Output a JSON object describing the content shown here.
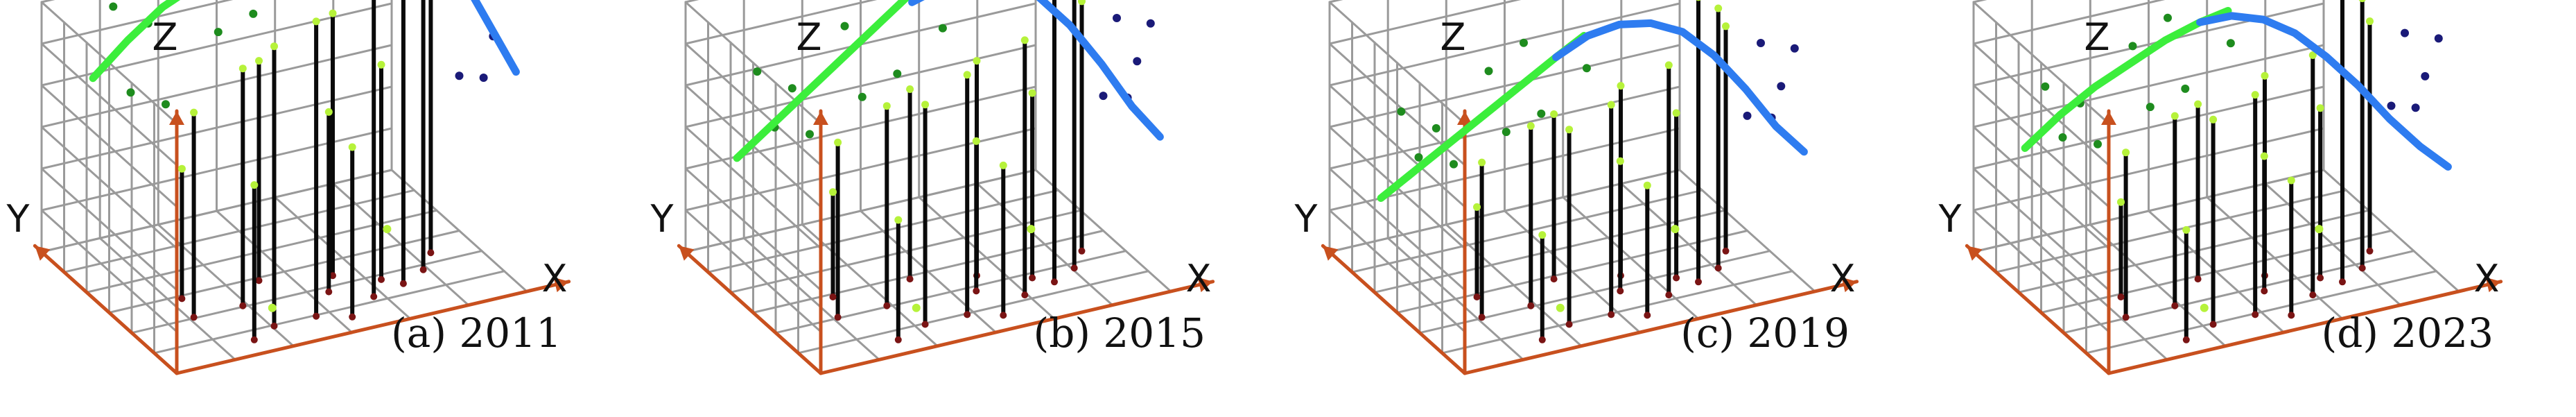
{
  "axes": {
    "x": "X",
    "y": "Y",
    "z": "Z"
  },
  "colors": {
    "grid": "#9a9a9a",
    "axis": "#c8501e",
    "green_curve": "#3cee3c",
    "blue_curve": "#2e7cf0",
    "stem": "#0a0a0a",
    "stem_base": "#7a1414",
    "lime_point": "#b6f23a",
    "green_point": "#1e8c1e",
    "navy_point": "#1a1a78"
  },
  "panels": [
    {
      "caption": "(a) 2011",
      "green_curve": [
        [
          0.0,
          0.62,
          0.88
        ],
        [
          0.1,
          0.62,
          1.0
        ],
        [
          0.2,
          0.62,
          1.1
        ],
        [
          0.3,
          0.62,
          1.16
        ],
        [
          0.4,
          0.62,
          1.2
        ],
        [
          0.5,
          0.62,
          1.22
        ],
        [
          0.58,
          0.62,
          1.22
        ]
      ],
      "blue_curve": [
        [
          0.5,
          0.0,
          1.26
        ],
        [
          0.5,
          0.08,
          1.48
        ],
        [
          0.5,
          0.16,
          1.54
        ],
        [
          0.5,
          0.24,
          1.56
        ],
        [
          0.5,
          0.32,
          1.52
        ],
        [
          0.5,
          0.4,
          1.42
        ],
        [
          0.5,
          0.48,
          1.24
        ],
        [
          0.5,
          0.54,
          1.04
        ],
        [
          0.5,
          0.6,
          0.84
        ]
      ],
      "stems": [
        [
          0.18,
          0.34,
          0.82
        ],
        [
          0.32,
          0.34,
          0.95
        ],
        [
          0.42,
          0.48,
          0.88
        ],
        [
          0.6,
          0.4,
          1.05
        ],
        [
          0.26,
          0.1,
          0.62
        ],
        [
          0.34,
          0.16,
          1.12
        ],
        [
          0.46,
          0.16,
          1.18
        ],
        [
          0.54,
          0.1,
          0.68
        ],
        [
          0.64,
          0.2,
          1.28
        ],
        [
          0.74,
          0.24,
          1.42
        ],
        [
          0.82,
          0.3,
          1.36
        ],
        [
          0.88,
          0.4,
          1.18
        ],
        [
          0.7,
          0.3,
          0.86
        ],
        [
          0.2,
          0.48,
          0.52
        ],
        [
          0.55,
          0.3,
          0.72
        ]
      ],
      "green_points": [
        [
          0.05,
          0.6,
          1.16
        ],
        [
          0.15,
          0.6,
          1.06
        ],
        [
          0.35,
          0.6,
          0.96
        ],
        [
          0.45,
          0.6,
          1.0
        ],
        [
          0.2,
          0.6,
          0.72
        ],
        [
          0.3,
          0.6,
          1.26
        ],
        [
          0.58,
          0.6,
          1.1
        ],
        [
          0.4,
          0.6,
          1.32
        ],
        [
          0.1,
          0.6,
          0.8
        ]
      ],
      "navy_points": [
        [
          0.5,
          0.05,
          1.4
        ],
        [
          0.5,
          0.4,
          1.06
        ],
        [
          0.5,
          0.25,
          0.9
        ],
        [
          0.5,
          0.15,
          1.2
        ],
        [
          0.5,
          0.32,
          0.7
        ],
        [
          0.5,
          0.5,
          0.62
        ]
      ],
      "lime_points": [
        [
          0.35,
          0.2,
          0.05
        ],
        [
          0.62,
          0.05,
          0.35
        ]
      ]
    },
    {
      "caption": "(b) 2015",
      "green_curve": [
        [
          0.0,
          0.62,
          0.56
        ],
        [
          0.1,
          0.62,
          0.66
        ],
        [
          0.2,
          0.62,
          0.76
        ],
        [
          0.3,
          0.62,
          0.86
        ],
        [
          0.4,
          0.62,
          0.96
        ],
        [
          0.5,
          0.62,
          1.06
        ],
        [
          0.58,
          0.62,
          1.14
        ]
      ],
      "blue_curve": [
        [
          0.5,
          0.0,
          1.02
        ],
        [
          0.5,
          0.08,
          1.1
        ],
        [
          0.5,
          0.16,
          1.14
        ],
        [
          0.5,
          0.24,
          1.14
        ],
        [
          0.5,
          0.32,
          1.1
        ],
        [
          0.5,
          0.4,
          1.0
        ],
        [
          0.5,
          0.48,
          0.86
        ],
        [
          0.5,
          0.55,
          0.7
        ],
        [
          0.5,
          0.6,
          0.58
        ]
      ],
      "stems": [
        [
          0.18,
          0.34,
          0.7
        ],
        [
          0.32,
          0.34,
          0.8
        ],
        [
          0.44,
          0.48,
          0.76
        ],
        [
          0.6,
          0.4,
          0.86
        ],
        [
          0.26,
          0.1,
          0.48
        ],
        [
          0.36,
          0.16,
          0.88
        ],
        [
          0.48,
          0.16,
          0.96
        ],
        [
          0.56,
          0.1,
          0.6
        ],
        [
          0.66,
          0.2,
          1.02
        ],
        [
          0.76,
          0.24,
          1.24
        ],
        [
          0.84,
          0.3,
          1.16
        ],
        [
          0.9,
          0.4,
          1.0
        ],
        [
          0.72,
          0.3,
          0.74
        ],
        [
          0.22,
          0.48,
          0.42
        ],
        [
          0.56,
          0.3,
          0.6
        ]
      ],
      "green_points": [
        [
          0.05,
          0.6,
          0.9
        ],
        [
          0.15,
          0.6,
          0.8
        ],
        [
          0.35,
          0.6,
          0.7
        ],
        [
          0.45,
          0.6,
          0.76
        ],
        [
          0.2,
          0.6,
          0.6
        ],
        [
          0.3,
          0.6,
          1.0
        ],
        [
          0.58,
          0.6,
          0.9
        ],
        [
          0.4,
          0.6,
          1.1
        ],
        [
          0.1,
          0.6,
          0.66
        ]
      ],
      "navy_points": [
        [
          0.5,
          0.05,
          1.3
        ],
        [
          0.5,
          0.4,
          0.9
        ],
        [
          0.5,
          0.25,
          0.8
        ],
        [
          0.5,
          0.15,
          1.0
        ],
        [
          0.5,
          0.32,
          0.62
        ],
        [
          0.5,
          0.5,
          0.54
        ]
      ],
      "lime_points": [
        [
          0.35,
          0.2,
          0.05
        ],
        [
          0.62,
          0.05,
          0.35
        ]
      ]
    },
    {
      "caption": "(c) 2019",
      "green_curve": [
        [
          0.0,
          0.62,
          0.4
        ],
        [
          0.1,
          0.62,
          0.48
        ],
        [
          0.2,
          0.62,
          0.56
        ],
        [
          0.3,
          0.62,
          0.64
        ],
        [
          0.4,
          0.62,
          0.72
        ],
        [
          0.5,
          0.62,
          0.8
        ],
        [
          0.58,
          0.62,
          0.86
        ]
      ],
      "blue_curve": [
        [
          0.5,
          0.0,
          0.8
        ],
        [
          0.5,
          0.08,
          0.9
        ],
        [
          0.5,
          0.16,
          0.96
        ],
        [
          0.5,
          0.24,
          0.98
        ],
        [
          0.5,
          0.32,
          0.96
        ],
        [
          0.5,
          0.4,
          0.88
        ],
        [
          0.5,
          0.48,
          0.76
        ],
        [
          0.5,
          0.55,
          0.62
        ],
        [
          0.5,
          0.6,
          0.52
        ]
      ],
      "stems": [
        [
          0.18,
          0.34,
          0.62
        ],
        [
          0.32,
          0.34,
          0.72
        ],
        [
          0.44,
          0.48,
          0.66
        ],
        [
          0.6,
          0.4,
          0.76
        ],
        [
          0.26,
          0.1,
          0.42
        ],
        [
          0.36,
          0.16,
          0.78
        ],
        [
          0.48,
          0.16,
          0.84
        ],
        [
          0.56,
          0.1,
          0.52
        ],
        [
          0.66,
          0.2,
          0.92
        ],
        [
          0.76,
          0.24,
          1.14
        ],
        [
          0.84,
          0.3,
          1.04
        ],
        [
          0.9,
          0.4,
          0.9
        ],
        [
          0.72,
          0.3,
          0.66
        ],
        [
          0.22,
          0.48,
          0.36
        ],
        [
          0.56,
          0.3,
          0.52
        ]
      ],
      "green_points": [
        [
          0.05,
          0.6,
          0.74
        ],
        [
          0.15,
          0.6,
          0.64
        ],
        [
          0.35,
          0.6,
          0.56
        ],
        [
          0.45,
          0.6,
          0.6
        ],
        [
          0.2,
          0.6,
          0.48
        ],
        [
          0.3,
          0.6,
          0.82
        ],
        [
          0.58,
          0.6,
          0.74
        ],
        [
          0.4,
          0.6,
          0.9
        ],
        [
          0.1,
          0.6,
          0.54
        ]
      ],
      "navy_points": [
        [
          0.5,
          0.05,
          1.2
        ],
        [
          0.5,
          0.4,
          0.8
        ],
        [
          0.5,
          0.25,
          0.7
        ],
        [
          0.5,
          0.15,
          0.9
        ],
        [
          0.5,
          0.32,
          0.54
        ],
        [
          0.5,
          0.5,
          0.46
        ]
      ],
      "lime_points": [
        [
          0.35,
          0.2,
          0.05
        ],
        [
          0.62,
          0.05,
          0.35
        ]
      ]
    },
    {
      "caption": "(d) 2023",
      "green_curve": [
        [
          0.0,
          0.62,
          0.6
        ],
        [
          0.1,
          0.62,
          0.7
        ],
        [
          0.2,
          0.62,
          0.78
        ],
        [
          0.3,
          0.62,
          0.84
        ],
        [
          0.4,
          0.62,
          0.9
        ],
        [
          0.5,
          0.62,
          0.94
        ],
        [
          0.58,
          0.62,
          0.96
        ]
      ],
      "blue_curve": [
        [
          0.5,
          0.0,
          0.94
        ],
        [
          0.5,
          0.08,
          0.98
        ],
        [
          0.5,
          0.16,
          0.98
        ],
        [
          0.5,
          0.24,
          0.94
        ],
        [
          0.5,
          0.32,
          0.86
        ],
        [
          0.5,
          0.4,
          0.76
        ],
        [
          0.5,
          0.48,
          0.64
        ],
        [
          0.5,
          0.55,
          0.54
        ],
        [
          0.5,
          0.6,
          0.46
        ]
      ],
      "stems": [
        [
          0.18,
          0.34,
          0.66
        ],
        [
          0.32,
          0.34,
          0.76
        ],
        [
          0.44,
          0.48,
          0.7
        ],
        [
          0.6,
          0.4,
          0.8
        ],
        [
          0.26,
          0.1,
          0.44
        ],
        [
          0.36,
          0.16,
          0.82
        ],
        [
          0.48,
          0.16,
          0.88
        ],
        [
          0.56,
          0.1,
          0.54
        ],
        [
          0.66,
          0.2,
          0.96
        ],
        [
          0.76,
          0.24,
          1.18
        ],
        [
          0.84,
          0.3,
          1.08
        ],
        [
          0.9,
          0.4,
          0.92
        ],
        [
          0.72,
          0.3,
          0.68
        ],
        [
          0.22,
          0.48,
          0.38
        ],
        [
          0.56,
          0.3,
          0.54
        ]
      ],
      "green_points": [
        [
          0.05,
          0.6,
          0.84
        ],
        [
          0.15,
          0.6,
          0.74
        ],
        [
          0.35,
          0.6,
          0.66
        ],
        [
          0.45,
          0.6,
          0.7
        ],
        [
          0.2,
          0.6,
          0.56
        ],
        [
          0.3,
          0.6,
          0.92
        ],
        [
          0.58,
          0.6,
          0.84
        ],
        [
          0.4,
          0.6,
          1.0
        ],
        [
          0.1,
          0.6,
          0.62
        ]
      ],
      "navy_points": [
        [
          0.5,
          0.05,
          1.24
        ],
        [
          0.5,
          0.4,
          0.84
        ],
        [
          0.5,
          0.25,
          0.74
        ],
        [
          0.5,
          0.15,
          0.94
        ],
        [
          0.5,
          0.32,
          0.58
        ],
        [
          0.5,
          0.5,
          0.5
        ]
      ],
      "lime_points": [
        [
          0.35,
          0.2,
          0.05
        ],
        [
          0.62,
          0.05,
          0.35
        ]
      ]
    }
  ]
}
